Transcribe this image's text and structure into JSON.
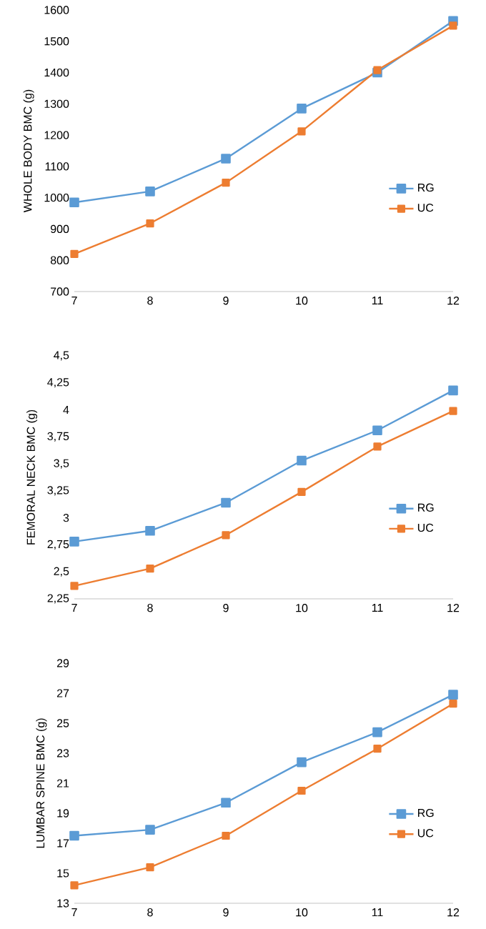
{
  "chart_data": [
    {
      "type": "line",
      "ylabel": "WHOLE BODY BMC (g)",
      "x": [
        7,
        8,
        9,
        10,
        11,
        12
      ],
      "xlim": [
        7,
        12
      ],
      "xticks": [
        7,
        8,
        9,
        10,
        11,
        12
      ],
      "ylim": [
        700,
        1600
      ],
      "yticks": [
        700,
        800,
        900,
        1000,
        1100,
        1200,
        1300,
        1400,
        1500,
        1600
      ],
      "grid": false,
      "legend": "right",
      "marker": "square",
      "line_style": "solid",
      "series": [
        {
          "name": "RG",
          "color": "#5b9bd5",
          "values": [
            985,
            1020,
            1125,
            1285,
            1400,
            1565
          ]
        },
        {
          "name": "UC",
          "color": "#ed7d31",
          "values": [
            820,
            918,
            1048,
            1212,
            1408,
            1550
          ]
        }
      ]
    },
    {
      "type": "line",
      "ylabel": "FEMORAL NECK BMC (g)",
      "x": [
        7,
        8,
        9,
        10,
        11,
        12
      ],
      "xlim": [
        7,
        12
      ],
      "xticks": [
        7,
        8,
        9,
        10,
        11,
        12
      ],
      "ylim": [
        2.25,
        4.5
      ],
      "yticks": [
        {
          "value": 2.25,
          "label": "2,25"
        },
        {
          "value": 2.5,
          "label": "2,5"
        },
        {
          "value": 2.75,
          "label": "2,75"
        },
        3,
        {
          "value": 3.25,
          "label": "3,25"
        },
        {
          "value": 3.5,
          "label": "3,5"
        },
        {
          "value": 3.75,
          "label": "3,75"
        },
        4,
        {
          "value": 4.25,
          "label": "4,25"
        },
        {
          "value": 4.5,
          "label": "4,5"
        }
      ],
      "grid": false,
      "legend": "right",
      "marker": "square",
      "line_style": "solid",
      "series": [
        {
          "name": "RG",
          "color": "#5b9bd5",
          "values": [
            2.78,
            2.88,
            3.14,
            3.53,
            3.81,
            4.18
          ]
        },
        {
          "name": "UC",
          "color": "#ed7d31",
          "values": [
            2.37,
            2.53,
            2.84,
            3.24,
            3.66,
            3.99
          ]
        }
      ]
    },
    {
      "type": "line",
      "ylabel": "LUMBAR SPINE BMC (g)",
      "x": [
        7,
        8,
        9,
        10,
        11,
        12
      ],
      "xlim": [
        7,
        12
      ],
      "xticks": [
        7,
        8,
        9,
        10,
        11,
        12
      ],
      "ylim": [
        13,
        29
      ],
      "yticks": [
        13,
        15,
        17,
        19,
        21,
        23,
        25,
        27,
        29
      ],
      "grid": false,
      "legend": "right",
      "marker": "square",
      "line_style": "solid",
      "series": [
        {
          "name": "RG",
          "color": "#5b9bd5",
          "values": [
            17.5,
            17.9,
            19.7,
            22.4,
            24.4,
            26.9
          ]
        },
        {
          "name": "UC",
          "color": "#ed7d31",
          "values": [
            14.2,
            15.4,
            17.5,
            20.5,
            23.3,
            26.3
          ]
        }
      ]
    }
  ]
}
